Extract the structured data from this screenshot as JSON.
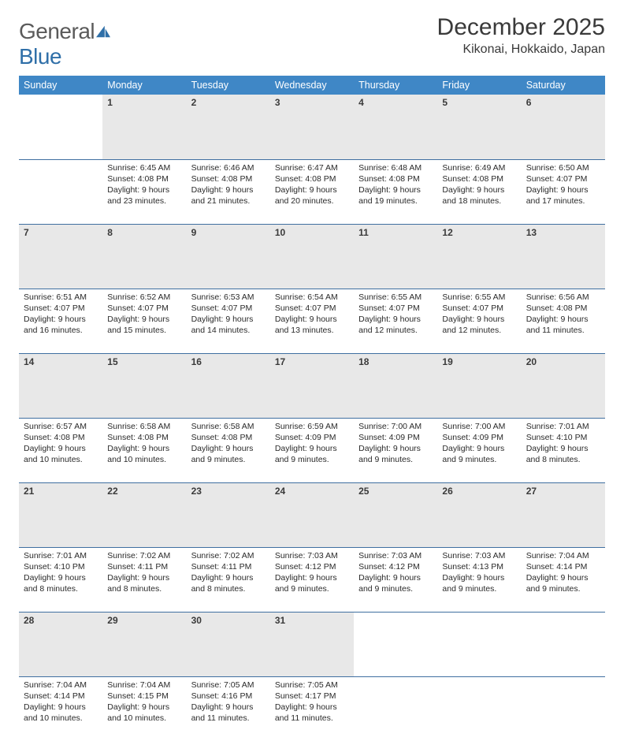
{
  "brand": {
    "word1": "General",
    "word2": "Blue"
  },
  "title": "December 2025",
  "location": "Kikonai, Hokkaido, Japan",
  "colors": {
    "header_bg": "#3f87c6",
    "daynum_bg": "#e8e8e8",
    "rule": "#3f6fa0"
  },
  "day_names": [
    "Sunday",
    "Monday",
    "Tuesday",
    "Wednesday",
    "Thursday",
    "Friday",
    "Saturday"
  ],
  "weeks": [
    [
      null,
      {
        "n": "1",
        "sr": "6:45 AM",
        "ss": "4:08 PM",
        "dl": "9 hours and 23 minutes."
      },
      {
        "n": "2",
        "sr": "6:46 AM",
        "ss": "4:08 PM",
        "dl": "9 hours and 21 minutes."
      },
      {
        "n": "3",
        "sr": "6:47 AM",
        "ss": "4:08 PM",
        "dl": "9 hours and 20 minutes."
      },
      {
        "n": "4",
        "sr": "6:48 AM",
        "ss": "4:08 PM",
        "dl": "9 hours and 19 minutes."
      },
      {
        "n": "5",
        "sr": "6:49 AM",
        "ss": "4:08 PM",
        "dl": "9 hours and 18 minutes."
      },
      {
        "n": "6",
        "sr": "6:50 AM",
        "ss": "4:07 PM",
        "dl": "9 hours and 17 minutes."
      }
    ],
    [
      {
        "n": "7",
        "sr": "6:51 AM",
        "ss": "4:07 PM",
        "dl": "9 hours and 16 minutes."
      },
      {
        "n": "8",
        "sr": "6:52 AM",
        "ss": "4:07 PM",
        "dl": "9 hours and 15 minutes."
      },
      {
        "n": "9",
        "sr": "6:53 AM",
        "ss": "4:07 PM",
        "dl": "9 hours and 14 minutes."
      },
      {
        "n": "10",
        "sr": "6:54 AM",
        "ss": "4:07 PM",
        "dl": "9 hours and 13 minutes."
      },
      {
        "n": "11",
        "sr": "6:55 AM",
        "ss": "4:07 PM",
        "dl": "9 hours and 12 minutes."
      },
      {
        "n": "12",
        "sr": "6:55 AM",
        "ss": "4:07 PM",
        "dl": "9 hours and 12 minutes."
      },
      {
        "n": "13",
        "sr": "6:56 AM",
        "ss": "4:08 PM",
        "dl": "9 hours and 11 minutes."
      }
    ],
    [
      {
        "n": "14",
        "sr": "6:57 AM",
        "ss": "4:08 PM",
        "dl": "9 hours and 10 minutes."
      },
      {
        "n": "15",
        "sr": "6:58 AM",
        "ss": "4:08 PM",
        "dl": "9 hours and 10 minutes."
      },
      {
        "n": "16",
        "sr": "6:58 AM",
        "ss": "4:08 PM",
        "dl": "9 hours and 9 minutes."
      },
      {
        "n": "17",
        "sr": "6:59 AM",
        "ss": "4:09 PM",
        "dl": "9 hours and 9 minutes."
      },
      {
        "n": "18",
        "sr": "7:00 AM",
        "ss": "4:09 PM",
        "dl": "9 hours and 9 minutes."
      },
      {
        "n": "19",
        "sr": "7:00 AM",
        "ss": "4:09 PM",
        "dl": "9 hours and 9 minutes."
      },
      {
        "n": "20",
        "sr": "7:01 AM",
        "ss": "4:10 PM",
        "dl": "9 hours and 8 minutes."
      }
    ],
    [
      {
        "n": "21",
        "sr": "7:01 AM",
        "ss": "4:10 PM",
        "dl": "9 hours and 8 minutes."
      },
      {
        "n": "22",
        "sr": "7:02 AM",
        "ss": "4:11 PM",
        "dl": "9 hours and 8 minutes."
      },
      {
        "n": "23",
        "sr": "7:02 AM",
        "ss": "4:11 PM",
        "dl": "9 hours and 8 minutes."
      },
      {
        "n": "24",
        "sr": "7:03 AM",
        "ss": "4:12 PM",
        "dl": "9 hours and 9 minutes."
      },
      {
        "n": "25",
        "sr": "7:03 AM",
        "ss": "4:12 PM",
        "dl": "9 hours and 9 minutes."
      },
      {
        "n": "26",
        "sr": "7:03 AM",
        "ss": "4:13 PM",
        "dl": "9 hours and 9 minutes."
      },
      {
        "n": "27",
        "sr": "7:04 AM",
        "ss": "4:14 PM",
        "dl": "9 hours and 9 minutes."
      }
    ],
    [
      {
        "n": "28",
        "sr": "7:04 AM",
        "ss": "4:14 PM",
        "dl": "9 hours and 10 minutes."
      },
      {
        "n": "29",
        "sr": "7:04 AM",
        "ss": "4:15 PM",
        "dl": "9 hours and 10 minutes."
      },
      {
        "n": "30",
        "sr": "7:05 AM",
        "ss": "4:16 PM",
        "dl": "9 hours and 11 minutes."
      },
      {
        "n": "31",
        "sr": "7:05 AM",
        "ss": "4:17 PM",
        "dl": "9 hours and 11 minutes."
      },
      null,
      null,
      null
    ]
  ],
  "labels": {
    "sunrise": "Sunrise: ",
    "sunset": "Sunset: ",
    "daylight": "Daylight: "
  }
}
